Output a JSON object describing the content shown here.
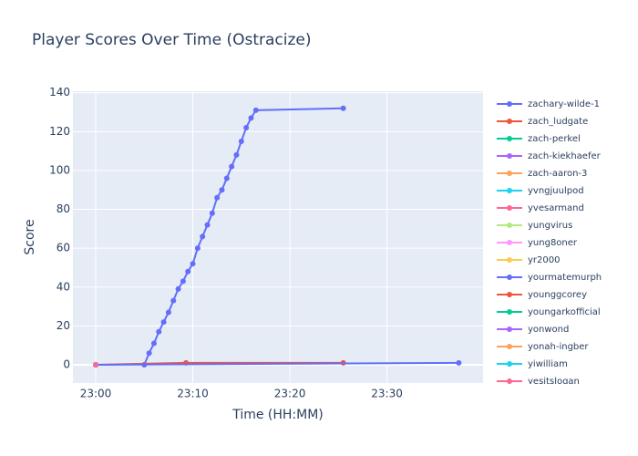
{
  "chart_data": {
    "type": "line",
    "title": "Player Scores Over Time (Ostracize)",
    "x_label": "Time (HH:MM)",
    "y_label": "Score",
    "xlim": [
      "22:57:39",
      "23:39:54"
    ],
    "xticks": [
      "23:00",
      "23:10",
      "23:20",
      "23:30"
    ],
    "ylim": [
      -9.4,
      140.8
    ],
    "yticks": [
      0,
      20,
      40,
      60,
      80,
      100,
      120,
      140
    ],
    "grid": true,
    "series": [
      {
        "name": "zachary-wilde-1",
        "color": "#636efa",
        "x": [
          "23:05:00",
          "23:05:30",
          "23:06:00",
          "23:06:30",
          "23:07:00",
          "23:07:30",
          "23:08:00",
          "23:08:30",
          "23:09:00",
          "23:09:30",
          "23:10:00",
          "23:10:30",
          "23:11:00",
          "23:11:30",
          "23:12:00",
          "23:12:30",
          "23:13:00",
          "23:13:30",
          "23:14:00",
          "23:14:30",
          "23:15:00",
          "23:15:30",
          "23:16:00",
          "23:16:30",
          "23:25:30"
        ],
        "values": [
          0,
          6,
          11,
          17,
          22,
          27,
          33,
          39,
          43,
          48,
          52,
          60,
          66,
          72,
          78,
          86,
          90,
          96,
          102,
          108,
          115,
          122,
          127,
          131,
          132
        ]
      },
      {
        "name": "zach_ludgate",
        "color": "#EF553B",
        "x": [
          "23:00:00",
          "23:09:18",
          "23:25:30"
        ],
        "values": [
          0,
          1,
          1
        ]
      },
      {
        "name": "zach-perkel",
        "color": "#00cc96",
        "x": [
          "23:00:00"
        ],
        "values": [
          0
        ]
      },
      {
        "name": "zach-kiekhaefer",
        "color": "#ab63fa",
        "x": [
          "23:00:00"
        ],
        "values": [
          0
        ]
      },
      {
        "name": "zach-aaron-3",
        "color": "#FFA15A",
        "x": [
          "23:00:00"
        ],
        "values": [
          0
        ]
      },
      {
        "name": "yvngjuulpod",
        "color": "#19d3f3",
        "x": [
          "23:00:00"
        ],
        "values": [
          0
        ]
      },
      {
        "name": "yvesarmand",
        "color": "#FF6692",
        "x": [
          "23:00:00"
        ],
        "values": [
          0
        ]
      },
      {
        "name": "yungvirus",
        "color": "#B6E880",
        "x": [
          "23:00:00"
        ],
        "values": [
          0
        ]
      },
      {
        "name": "yung8oner",
        "color": "#FF97FF",
        "x": [
          "23:00:00"
        ],
        "values": [
          0
        ]
      },
      {
        "name": "yr2000",
        "color": "#FECB52",
        "x": [
          "23:00:00"
        ],
        "values": [
          0
        ]
      },
      {
        "name": "yourmatemurph",
        "color": "#636efa",
        "x": [
          "23:00:00",
          "23:37:24"
        ],
        "values": [
          0,
          1
        ]
      },
      {
        "name": "younggcorey",
        "color": "#EF553B",
        "x": [
          "23:00:00"
        ],
        "values": [
          0
        ]
      },
      {
        "name": "youngarkofficial",
        "color": "#00cc96",
        "x": [
          "23:00:00"
        ],
        "values": [
          0
        ]
      },
      {
        "name": "yonwond",
        "color": "#ab63fa",
        "x": [
          "23:00:00"
        ],
        "values": [
          0
        ]
      },
      {
        "name": "yonah-ingber",
        "color": "#FFA15A",
        "x": [
          "23:00:00"
        ],
        "values": [
          0
        ]
      },
      {
        "name": "yiwilliam",
        "color": "#19d3f3",
        "x": [
          "23:00:00"
        ],
        "values": [
          0
        ]
      },
      {
        "name": "yesitslogan",
        "color": "#FF6692",
        "x": [
          "23:00:00"
        ],
        "values": [
          0
        ]
      }
    ]
  }
}
